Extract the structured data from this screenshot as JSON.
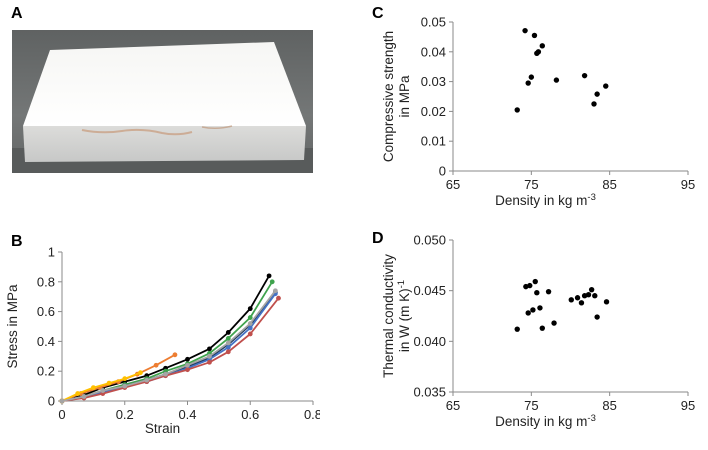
{
  "panels": {
    "a": {
      "letter": "A"
    },
    "b": {
      "letter": "B"
    },
    "c": {
      "letter": "C"
    },
    "d": {
      "letter": "D"
    }
  },
  "chart_data": [
    {
      "id": "b",
      "type": "line",
      "title": "",
      "xlabel": "Strain",
      "ylabel": "Stress in MPa",
      "xlim": [
        0,
        0.8
      ],
      "ylim": [
        0,
        1
      ],
      "xticks": [
        "0",
        "0.2",
        "0.4",
        "0.6",
        "0.8"
      ],
      "yticks": [
        "0",
        "0.2",
        "0.4",
        "0.6",
        "0.8",
        "1"
      ],
      "legend": "none",
      "grid": false,
      "series": [
        {
          "color": "#000000",
          "x": [
            0,
            0.07,
            0.13,
            0.2,
            0.27,
            0.33,
            0.4,
            0.47,
            0.53,
            0.6,
            0.66
          ],
          "y": [
            0,
            0.04,
            0.09,
            0.13,
            0.17,
            0.22,
            0.28,
            0.35,
            0.46,
            0.62,
            0.84
          ]
        },
        {
          "color": "#3fa34d",
          "x": [
            0,
            0.07,
            0.13,
            0.2,
            0.27,
            0.33,
            0.4,
            0.47,
            0.53,
            0.6,
            0.67
          ],
          "y": [
            0,
            0.03,
            0.07,
            0.11,
            0.15,
            0.2,
            0.25,
            0.32,
            0.42,
            0.56,
            0.8
          ]
        },
        {
          "color": "#1f3a5f",
          "x": [
            0,
            0.07,
            0.13,
            0.2,
            0.27,
            0.33,
            0.4,
            0.47,
            0.53,
            0.6,
            0.68
          ],
          "y": [
            0,
            0.03,
            0.06,
            0.1,
            0.14,
            0.18,
            0.23,
            0.29,
            0.38,
            0.51,
            0.73
          ]
        },
        {
          "color": "#4472c4",
          "x": [
            0,
            0.07,
            0.13,
            0.2,
            0.27,
            0.33,
            0.4,
            0.47,
            0.53,
            0.6,
            0.68
          ],
          "y": [
            0,
            0.03,
            0.06,
            0.1,
            0.13,
            0.17,
            0.22,
            0.28,
            0.36,
            0.49,
            0.72
          ]
        },
        {
          "color": "#c0504d",
          "x": [
            0,
            0.07,
            0.13,
            0.2,
            0.27,
            0.33,
            0.4,
            0.47,
            0.53,
            0.6,
            0.69
          ],
          "y": [
            0,
            0.02,
            0.05,
            0.09,
            0.13,
            0.17,
            0.21,
            0.26,
            0.33,
            0.45,
            0.69
          ]
        },
        {
          "color": "#ed7d31",
          "x": [
            0,
            0.06,
            0.12,
            0.18,
            0.24,
            0.3,
            0.36
          ],
          "y": [
            0,
            0.05,
            0.09,
            0.13,
            0.18,
            0.24,
            0.31
          ]
        },
        {
          "color": "#ffc000",
          "x": [
            0,
            0.05,
            0.1,
            0.15,
            0.2,
            0.25
          ],
          "y": [
            0,
            0.05,
            0.09,
            0.12,
            0.15,
            0.19
          ]
        },
        {
          "color": "#a5a5a5",
          "x": [
            0,
            0.07,
            0.13,
            0.2,
            0.27,
            0.33,
            0.4,
            0.47,
            0.53,
            0.6,
            0.68
          ],
          "y": [
            0,
            0.03,
            0.07,
            0.1,
            0.14,
            0.18,
            0.24,
            0.3,
            0.39,
            0.52,
            0.74
          ]
        }
      ]
    },
    {
      "id": "c",
      "type": "scatter",
      "title": "",
      "xlabel": "Density in kg m",
      "xlabel_sup": "-3",
      "ylabel": "Compressive strength",
      "ylabel2": "in MPa",
      "xlim": [
        65,
        95
      ],
      "ylim": [
        0,
        0.05
      ],
      "xticks": [
        "65",
        "75",
        "85",
        "95"
      ],
      "yticks": [
        "0",
        "0.01",
        "0.02",
        "0.03",
        "0.04",
        "0.05"
      ],
      "legend": "none",
      "grid": false,
      "color": "#000000",
      "x": [
        73.2,
        74.2,
        74.6,
        75.0,
        75.4,
        75.7,
        75.9,
        76.4,
        78.2,
        81.8,
        83.0,
        83.4,
        84.5
      ],
      "y": [
        0.0205,
        0.0471,
        0.0295,
        0.0315,
        0.0455,
        0.0395,
        0.04,
        0.042,
        0.0305,
        0.032,
        0.0225,
        0.0258,
        0.0285
      ]
    },
    {
      "id": "d",
      "type": "scatter",
      "title": "",
      "xlabel": "Density in kg m",
      "xlabel_sup": "-3",
      "ylabel": "Thermal conductivity",
      "ylabel2": "in W (m K)",
      "ylabel2_sup": "-1",
      "xlim": [
        65,
        95
      ],
      "ylim": [
        0.035,
        0.05
      ],
      "xticks": [
        "65",
        "75",
        "85",
        "95"
      ],
      "yticks": [
        "0.035",
        "0.040",
        "0.045",
        "0.050"
      ],
      "legend": "none",
      "grid": false,
      "color": "#000000",
      "x": [
        73.2,
        74.3,
        74.6,
        74.8,
        75.2,
        75.5,
        75.7,
        76.1,
        76.4,
        77.2,
        77.9,
        80.1,
        80.9,
        81.4,
        81.8,
        82.3,
        82.7,
        83.1,
        83.4,
        84.6
      ],
      "y": [
        0.0412,
        0.0454,
        0.0428,
        0.0455,
        0.0431,
        0.0459,
        0.0448,
        0.0433,
        0.0413,
        0.0449,
        0.0418,
        0.0441,
        0.0443,
        0.0438,
        0.0445,
        0.0446,
        0.0451,
        0.0445,
        0.0424,
        0.0439
      ]
    }
  ]
}
